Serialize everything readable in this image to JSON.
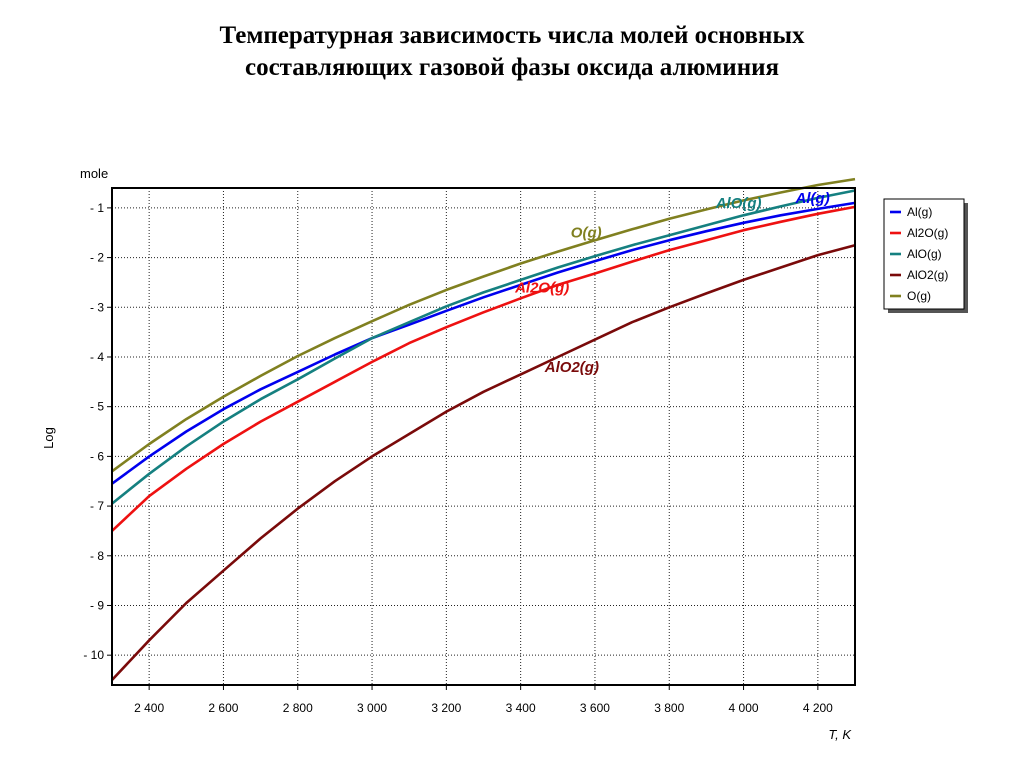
{
  "chart_data": {
    "type": "line",
    "title_line1": "Температурная зависимость числа молей основных",
    "title_line2": "составляющих газовой фазы оксида алюминия",
    "xlabel": "T, K",
    "ylabel": "Log",
    "y_unit": "mole",
    "xlim": [
      2300,
      4300
    ],
    "ylim": [
      -10.6,
      -0.6
    ],
    "x_ticks": [
      2400,
      2600,
      2800,
      3000,
      3200,
      3400,
      3600,
      3800,
      4000,
      4200
    ],
    "x_tick_labels": [
      "2 400",
      "2 600",
      "2 800",
      "3 000",
      "3 200",
      "3 400",
      "3 600",
      "3 800",
      "4 000",
      "4 200"
    ],
    "y_ticks": [
      -1,
      -2,
      -3,
      -4,
      -5,
      -6,
      -7,
      -8,
      -9,
      -10
    ],
    "y_tick_labels": [
      "- 1",
      "- 2",
      "- 3",
      "- 4",
      "- 5",
      "- 6",
      "- 7",
      "- 8",
      "- 9",
      "- 10"
    ],
    "grid": true,
    "legend_position": "right",
    "x": [
      2300,
      2400,
      2500,
      2600,
      2700,
      2800,
      2900,
      3000,
      3100,
      3200,
      3300,
      3400,
      3500,
      3600,
      3700,
      3800,
      3900,
      4000,
      4100,
      4200,
      4300
    ],
    "series": [
      {
        "name": "Al(g)",
        "color": "#0000ee",
        "values": [
          -6.55,
          -6.0,
          -5.5,
          -5.05,
          -4.65,
          -4.3,
          -3.95,
          -3.62,
          -3.35,
          -3.07,
          -2.8,
          -2.55,
          -2.3,
          -2.07,
          -1.85,
          -1.65,
          -1.47,
          -1.3,
          -1.15,
          -1.02,
          -0.9
        ]
      },
      {
        "name": "Al2O(g)",
        "color": "#ee1111",
        "values": [
          -7.5,
          -6.8,
          -6.25,
          -5.75,
          -5.3,
          -4.9,
          -4.5,
          -4.1,
          -3.72,
          -3.4,
          -3.1,
          -2.82,
          -2.55,
          -2.32,
          -2.08,
          -1.85,
          -1.65,
          -1.45,
          -1.28,
          -1.12,
          -0.98
        ]
      },
      {
        "name": "AlO(g)",
        "color": "#158080",
        "values": [
          -6.95,
          -6.35,
          -5.8,
          -5.3,
          -4.85,
          -4.45,
          -4.03,
          -3.62,
          -3.3,
          -2.98,
          -2.7,
          -2.45,
          -2.2,
          -1.97,
          -1.75,
          -1.55,
          -1.35,
          -1.15,
          -0.97,
          -0.8,
          -0.65
        ]
      },
      {
        "name": "AlO2(g)",
        "color": "#7a0a0a",
        "values": [
          -10.5,
          -9.7,
          -8.95,
          -8.3,
          -7.65,
          -7.05,
          -6.5,
          -6.0,
          -5.55,
          -5.1,
          -4.7,
          -4.35,
          -4.0,
          -3.65,
          -3.3,
          -3.0,
          -2.72,
          -2.45,
          -2.2,
          -1.95,
          -1.75
        ]
      },
      {
        "name": "O(g)",
        "color": "#808020",
        "values": [
          -6.3,
          -5.75,
          -5.25,
          -4.8,
          -4.38,
          -3.98,
          -3.62,
          -3.28,
          -2.95,
          -2.65,
          -2.38,
          -2.12,
          -1.88,
          -1.65,
          -1.43,
          -1.22,
          -1.03,
          -0.85,
          -0.69,
          -0.54,
          -0.42
        ]
      }
    ],
    "annotations": [
      {
        "text": "Al(g)",
        "x": 4140,
        "y": -0.9,
        "color": "#0000ee"
      },
      {
        "text": "AlO(g)",
        "x": 3925,
        "y": -1.0,
        "color": "#158080"
      },
      {
        "text": "O(g)",
        "x": 3535,
        "y": -1.6,
        "color": "#808020"
      },
      {
        "text": "Al2O(g)",
        "x": 3385,
        "y": -2.7,
        "color": "#ee1111"
      },
      {
        "text": "AlO2(g)",
        "x": 3465,
        "y": -4.3,
        "color": "#7a0a0a"
      }
    ]
  }
}
